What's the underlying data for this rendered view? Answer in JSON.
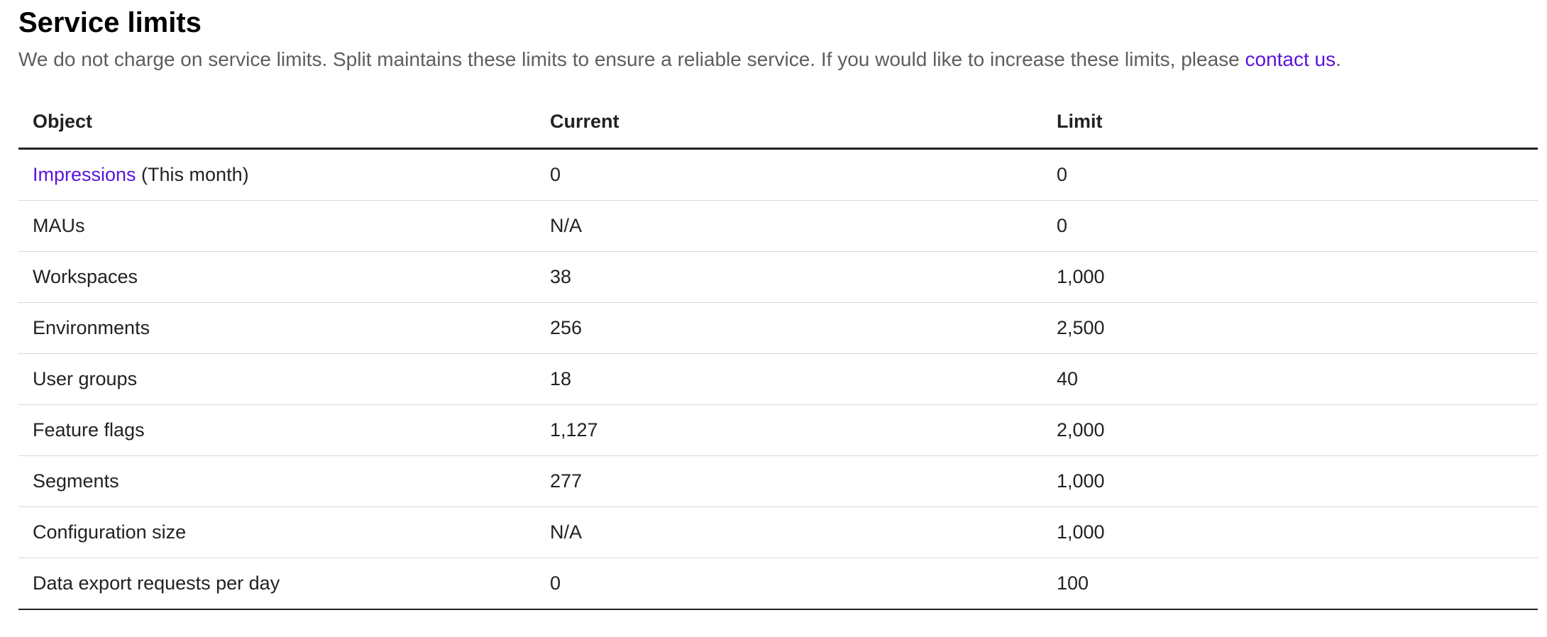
{
  "title": "Service limits",
  "subtitle": {
    "text": "We do not charge on service limits. Split maintains these limits to ensure a reliable service. If you would like to increase these limits, please ",
    "link": "contact us",
    "suffix": "."
  },
  "colors": {
    "link": "#5a14d8",
    "text": "#222222",
    "subtitle": "#5e5e5e"
  },
  "table": {
    "headers": [
      "Object",
      "Current",
      "Limit"
    ],
    "rows": [
      {
        "object_link": "Impressions",
        "object": " (This month)",
        "current": "0",
        "limit": "0"
      },
      {
        "object": "MAUs",
        "current": "N/A",
        "limit": "0"
      },
      {
        "object": "Workspaces",
        "current": "38",
        "limit": "1,000"
      },
      {
        "object": "Environments",
        "current": "256",
        "limit": "2,500"
      },
      {
        "object": "User groups",
        "current": "18",
        "limit": "40"
      },
      {
        "object": "Feature flags",
        "current": "1,127",
        "limit": "2,000"
      },
      {
        "object": "Segments",
        "current": "277",
        "limit": "1,000"
      },
      {
        "object": "Configuration size",
        "current": "N/A",
        "limit": "1,000"
      },
      {
        "object": "Data export requests per day",
        "current": "0",
        "limit": "100"
      }
    ]
  }
}
